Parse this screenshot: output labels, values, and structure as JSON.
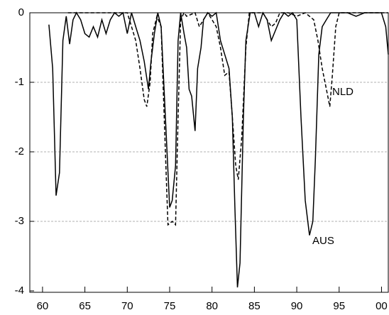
{
  "chart_data": {
    "type": "line",
    "xlim": [
      58.5,
      100.8
    ],
    "ylim": [
      -4,
      0
    ],
    "xticks": [
      60,
      65,
      70,
      75,
      80,
      85,
      90,
      95,
      {
        "value": 100,
        "label": "00"
      }
    ],
    "yticks": [
      0,
      -1,
      -2,
      -3,
      -4
    ],
    "grid": true,
    "annotations": [
      "NLD",
      "AUS"
    ],
    "series": [
      {
        "name": "AUS",
        "color": "#000000",
        "dash": "solid",
        "x": [
          60.75,
          61.2,
          61.6,
          62.0,
          62.4,
          62.8,
          63.2,
          63.6,
          64,
          64.5,
          65,
          65.5,
          66,
          66.5,
          67,
          67.5,
          68,
          68.5,
          69,
          69.5,
          70,
          70.5,
          71,
          71.5,
          72,
          72.5,
          72.8,
          73.2,
          73.6,
          74,
          74.5,
          75,
          75.3,
          75.7,
          76,
          76.3,
          76.7,
          77,
          77.3,
          77.6,
          78,
          78.3,
          78.7,
          79,
          79.5,
          80,
          80.5,
          81,
          81.5,
          82,
          82.4,
          82.7,
          83,
          83.3,
          83.7,
          84,
          84.5,
          85,
          85.5,
          86,
          86.5,
          87,
          87.5,
          88,
          88.5,
          89,
          89.5,
          90,
          90.5,
          91,
          91.5,
          91.9,
          92.2,
          92.6,
          93,
          93.5,
          94,
          95,
          96,
          97,
          98,
          99,
          100,
          100.5,
          100.8
        ],
        "values": [
          -0.17,
          -0.8,
          -2.63,
          -2.3,
          -0.4,
          -0.05,
          -0.45,
          -0.1,
          0,
          -0.1,
          -0.3,
          -0.35,
          -0.2,
          -0.35,
          -0.1,
          -0.3,
          -0.1,
          0,
          -0.05,
          0,
          -0.3,
          0,
          -0.2,
          -0.4,
          -0.7,
          -1.1,
          -0.7,
          -0.3,
          0,
          -0.2,
          -1.5,
          -2.8,
          -2.7,
          -2.2,
          -0.4,
          0,
          -0.3,
          -0.5,
          -1.1,
          -1.2,
          -1.7,
          -0.8,
          -0.5,
          -0.1,
          0,
          -0.05,
          0,
          -0.4,
          -0.6,
          -0.8,
          -1.5,
          -2.8,
          -3.95,
          -3.6,
          -1.5,
          -0.4,
          0,
          0,
          -0.2,
          0,
          -0.1,
          -0.4,
          -0.25,
          -0.1,
          0,
          -0.05,
          0,
          -0.1,
          -1.5,
          -2.7,
          -3.2,
          -3.0,
          -2.1,
          -0.6,
          -0.2,
          -0.1,
          0,
          0,
          0,
          -0.05,
          0,
          0,
          0,
          -0.2,
          -0.6
        ]
      },
      {
        "name": "NLD",
        "color": "#000000",
        "dash": "dashed",
        "x": [
          63,
          70,
          70.5,
          71,
          71.5,
          72,
          72.3,
          72.7,
          73,
          73.5,
          74,
          74.5,
          74.8,
          75.3,
          75.7,
          76,
          76.3,
          76.7,
          77,
          78,
          78.5,
          79,
          79.5,
          80,
          80.5,
          81,
          81.5,
          82,
          82.4,
          82.8,
          83.1,
          83.5,
          84,
          84.4,
          85,
          86,
          86.5,
          87,
          87.5,
          88,
          89,
          90,
          91,
          92,
          92.5,
          93,
          93.5,
          93.9,
          94.2,
          94.6,
          95,
          96,
          100.8
        ],
        "values": [
          0,
          0,
          -0.2,
          -0.4,
          -0.8,
          -1.25,
          -1.35,
          -1.0,
          -0.3,
          -0.05,
          -0.2,
          -2.0,
          -3.05,
          -3.0,
          -3.05,
          -1.5,
          -0.1,
          0,
          -0.05,
          0,
          -0.2,
          -0.1,
          0,
          -0.1,
          -0.2,
          -0.5,
          -0.9,
          -0.85,
          -1.5,
          -2.2,
          -2.4,
          -1.8,
          -0.5,
          0,
          0,
          0,
          -0.1,
          -0.2,
          -0.15,
          0,
          0,
          -0.05,
          0,
          -0.1,
          -0.4,
          -0.8,
          -1.1,
          -1.35,
          -0.9,
          -0.2,
          0,
          0,
          0
        ]
      }
    ]
  }
}
